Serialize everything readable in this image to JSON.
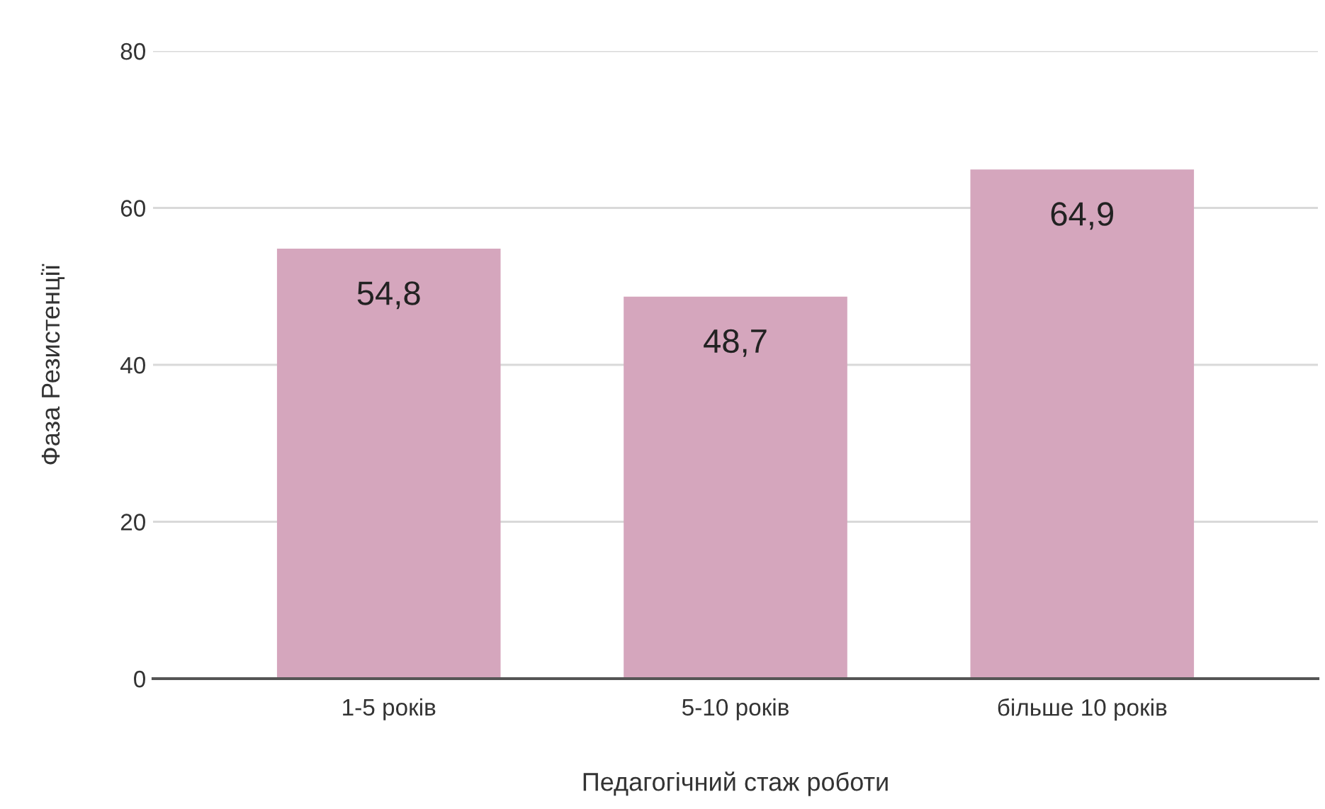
{
  "chart_data": {
    "type": "bar",
    "xlabel": "Педагогічний стаж роботи",
    "ylabel": "Фаза Резистенції",
    "categories": [
      "1-5 років",
      "5-10 років",
      "більше 10 років"
    ],
    "values": [
      54.8,
      48.7,
      64.9
    ],
    "color": "#d5a6bd",
    "value_labels": [
      "54,8",
      "48,7",
      "64,9"
    ],
    "ylim": [
      0,
      80
    ],
    "yticks": [
      0,
      20,
      40,
      60,
      80
    ],
    "grid": "y"
  }
}
